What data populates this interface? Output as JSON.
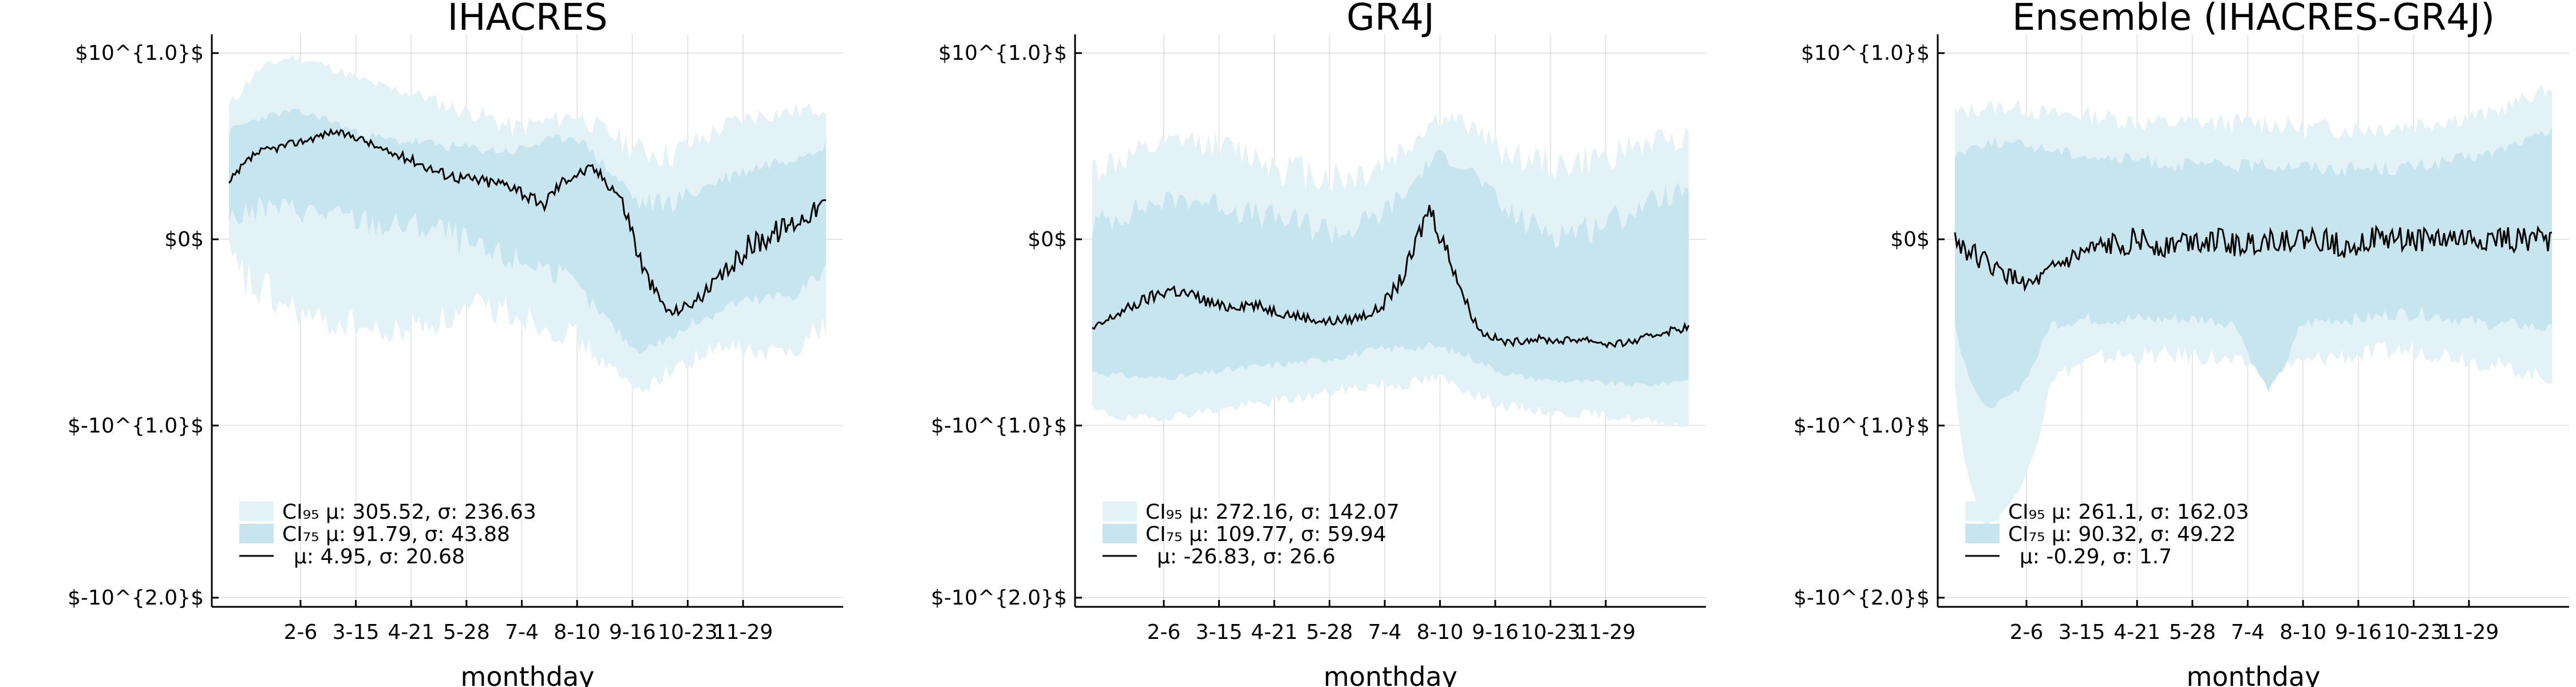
{
  "chart_data": [
    {
      "type": "line",
      "title": "IHACRES",
      "xlabel": "monthday",
      "ylabel": "",
      "y_scale": "symlog",
      "yticks": [
        "$10^{1.0}$",
        "$0$",
        "$-10^{1.0}$",
        "$-10^{2.0}$"
      ],
      "ytick_values": [
        10,
        0,
        -10,
        -100
      ],
      "xticks": [
        "2-6",
        "3-15",
        "4-21",
        "5-28",
        "7-4",
        "8-10",
        "9-16",
        "10-23",
        "11-29"
      ],
      "grid": true,
      "legend_position": "bottom-left",
      "colors": {
        "ci95": "#e2f2f7",
        "ci75": "#c6e5ee",
        "median": "#000000"
      },
      "bands": {
        "ci95": {
          "label": "CI₉₅ μ: 305.52, σ: 236.63",
          "upper": [
            4.5,
            8.0,
            9.5,
            8.5,
            7.0,
            6.0,
            5.5,
            4.5,
            4.0,
            3.2,
            3.5,
            4.0,
            3.0,
            2.2,
            2.0,
            2.6,
            3.5,
            4.0,
            4.2,
            4.5
          ],
          "lower": [
            -0.5,
            -1.0,
            -1.5,
            -2.0,
            -2.0,
            -2.5,
            -2.0,
            -1.8,
            -1.5,
            -1.5,
            -2.0,
            -2.5,
            -4.0,
            -6.0,
            -4.5,
            -3.5,
            -3.0,
            -3.5,
            -3.0,
            -2.0
          ]
        },
        "ci75": {
          "label": "CI₇₅ μ: 91.79, σ: 43.88",
          "upper": [
            3.0,
            3.8,
            4.2,
            3.8,
            3.0,
            2.6,
            2.5,
            2.3,
            2.2,
            2.1,
            2.5,
            2.8,
            1.5,
            0.6,
            0.6,
            0.9,
            1.3,
            1.6,
            1.9,
            2.4
          ],
          "lower": [
            0.3,
            0.5,
            0.5,
            0.4,
            0.3,
            0.2,
            0.2,
            0.1,
            -0.2,
            -0.3,
            -0.4,
            -0.8,
            -1.8,
            -3.2,
            -2.6,
            -1.8,
            -1.3,
            -1.2,
            -1.0,
            -0.5
          ]
        },
        "median": {
          "label": "μ: 4.95, σ: 20.68"
        }
      },
      "median": [
        1.0,
        2.0,
        2.3,
        2.6,
        3.0,
        2.7,
        2.1,
        1.8,
        1.4,
        1.2,
        1.1,
        1.0,
        0.5,
        1.2,
        1.5,
        0.8,
        -0.5,
        -1.6,
        -1.2,
        -0.6,
        -0.1,
        0.1,
        0.3,
        0.6
      ]
    },
    {
      "type": "line",
      "title": "GR4J",
      "xlabel": "monthday",
      "ylabel": "",
      "y_scale": "symlog",
      "yticks": [
        "$10^{1.0}$",
        "$0$",
        "$-10^{1.0}$",
        "$-10^{2.0}$"
      ],
      "ytick_values": [
        10,
        0,
        -10,
        -100
      ],
      "xticks": [
        "2-6",
        "3-15",
        "4-21",
        "5-28",
        "7-4",
        "8-10",
        "9-16",
        "10-23",
        "11-29"
      ],
      "grid": true,
      "legend_position": "bottom-left",
      "colors": {
        "ci95": "#e2f2f7",
        "ci75": "#c6e5ee",
        "median": "#000000"
      },
      "bands": {
        "ci95": {
          "label": "CI₉₅ μ: 272.16, σ: 142.07",
          "upper": [
            1.5,
            1.8,
            2.2,
            2.6,
            2.4,
            2.0,
            1.6,
            1.4,
            1.2,
            1.5,
            2.2,
            3.8,
            3.4,
            2.2,
            1.8,
            1.6,
            1.8,
            2.2,
            2.6,
            2.8
          ],
          "lower": [
            -8.0,
            -9.0,
            -9.0,
            -8.5,
            -8.0,
            -7.5,
            -7.0,
            -6.5,
            -6.0,
            -5.5,
            -5.5,
            -5.0,
            -6.0,
            -7.5,
            -8.0,
            -8.5,
            -8.5,
            -9.0,
            -9.5,
            -10.0
          ]
        },
        "ci75": {
          "label": "CI₇₅ μ: 109.77, σ: 59.94",
          "upper": [
            0.2,
            0.4,
            0.6,
            0.7,
            0.6,
            0.4,
            0.3,
            0.2,
            0.1,
            0.3,
            0.8,
            2.0,
            1.5,
            0.5,
            0.2,
            0.1,
            0.2,
            0.4,
            0.7,
            0.9
          ],
          "lower": [
            -4.5,
            -4.8,
            -5.0,
            -4.8,
            -4.5,
            -4.2,
            -4.0,
            -3.8,
            -3.5,
            -3.2,
            -3.0,
            -3.0,
            -3.5,
            -4.5,
            -5.0,
            -5.2,
            -5.3,
            -5.5,
            -5.5,
            -5.0
          ]
        },
        "median": {
          "label": "μ: -26.83, σ: 26.6"
        }
      },
      "median": [
        -2.2,
        -1.6,
        -1.2,
        -0.9,
        -1.1,
        -1.4,
        -1.3,
        -1.5,
        -1.7,
        -1.9,
        -1.8,
        -1.5,
        -0.6,
        0.5,
        -0.5,
        -2.3,
        -2.8,
        -2.6,
        -2.7,
        -2.6,
        -2.9,
        -2.7,
        -2.3,
        -2.1
      ]
    },
    {
      "type": "line",
      "title": "Ensemble (IHACRES-GR4J)",
      "xlabel": "monthday",
      "ylabel": "",
      "y_scale": "symlog",
      "yticks": [
        "$10^{1.0}$",
        "$0$",
        "$-10^{1.0}$",
        "$-10^{2.0}$"
      ],
      "ytick_values": [
        10,
        0,
        -10,
        -100
      ],
      "xticks": [
        "2-6",
        "3-15",
        "4-21",
        "5-28",
        "7-4",
        "8-10",
        "9-16",
        "10-23",
        "11-29"
      ],
      "grid": true,
      "legend_position": "bottom-left",
      "colors": {
        "ci95": "#e2f2f7",
        "ci75": "#c6e5ee",
        "median": "#000000"
      },
      "bands": {
        "ci95": {
          "label": "CI₉₅ μ: 261.1, σ: 162.03",
          "upper": [
            4.0,
            4.5,
            4.5,
            4.0,
            4.0,
            3.8,
            3.5,
            3.5,
            3.5,
            3.5,
            3.5,
            3.2,
            3.2,
            3.2,
            3.3,
            3.5,
            3.8,
            4.0,
            5.0,
            6.0
          ],
          "lower": [
            -5.0,
            -40.0,
            -25.0,
            -5.0,
            -4.0,
            -3.5,
            -3.5,
            -3.5,
            -3.5,
            -4.0,
            -4.0,
            -4.0,
            -3.5,
            -3.5,
            -3.2,
            -3.2,
            -3.5,
            -4.0,
            -4.5,
            -5.0
          ]
        },
        "ci75": {
          "label": "CI₇₅ μ: 90.32, σ: 49.22",
          "upper": [
            2.0,
            2.5,
            2.4,
            2.2,
            2.0,
            1.8,
            1.8,
            1.6,
            1.6,
            1.6,
            1.6,
            1.6,
            1.5,
            1.5,
            1.5,
            1.6,
            1.8,
            2.0,
            2.5,
            3.0
          ],
          "lower": [
            -2.0,
            -8.0,
            -6.0,
            -2.0,
            -1.8,
            -1.8,
            -1.8,
            -1.8,
            -1.8,
            -2.0,
            -6.0,
            -2.0,
            -1.8,
            -1.8,
            -1.6,
            -1.6,
            -1.8,
            -2.0,
            -2.0,
            -2.2
          ]
        },
        "median": {
          "label": "μ: -0.29, σ: 1.7"
        }
      },
      "median": [
        0.0,
        -0.3,
        -0.6,
        -0.8,
        -0.4,
        -0.2,
        -0.1,
        0.0,
        -0.1,
        0.0,
        0.0,
        -0.1,
        0.0,
        0.0,
        0.0,
        -0.1,
        0.0,
        0.0,
        0.0,
        0.0,
        0.0,
        0.0,
        0.0,
        0.0
      ]
    }
  ]
}
